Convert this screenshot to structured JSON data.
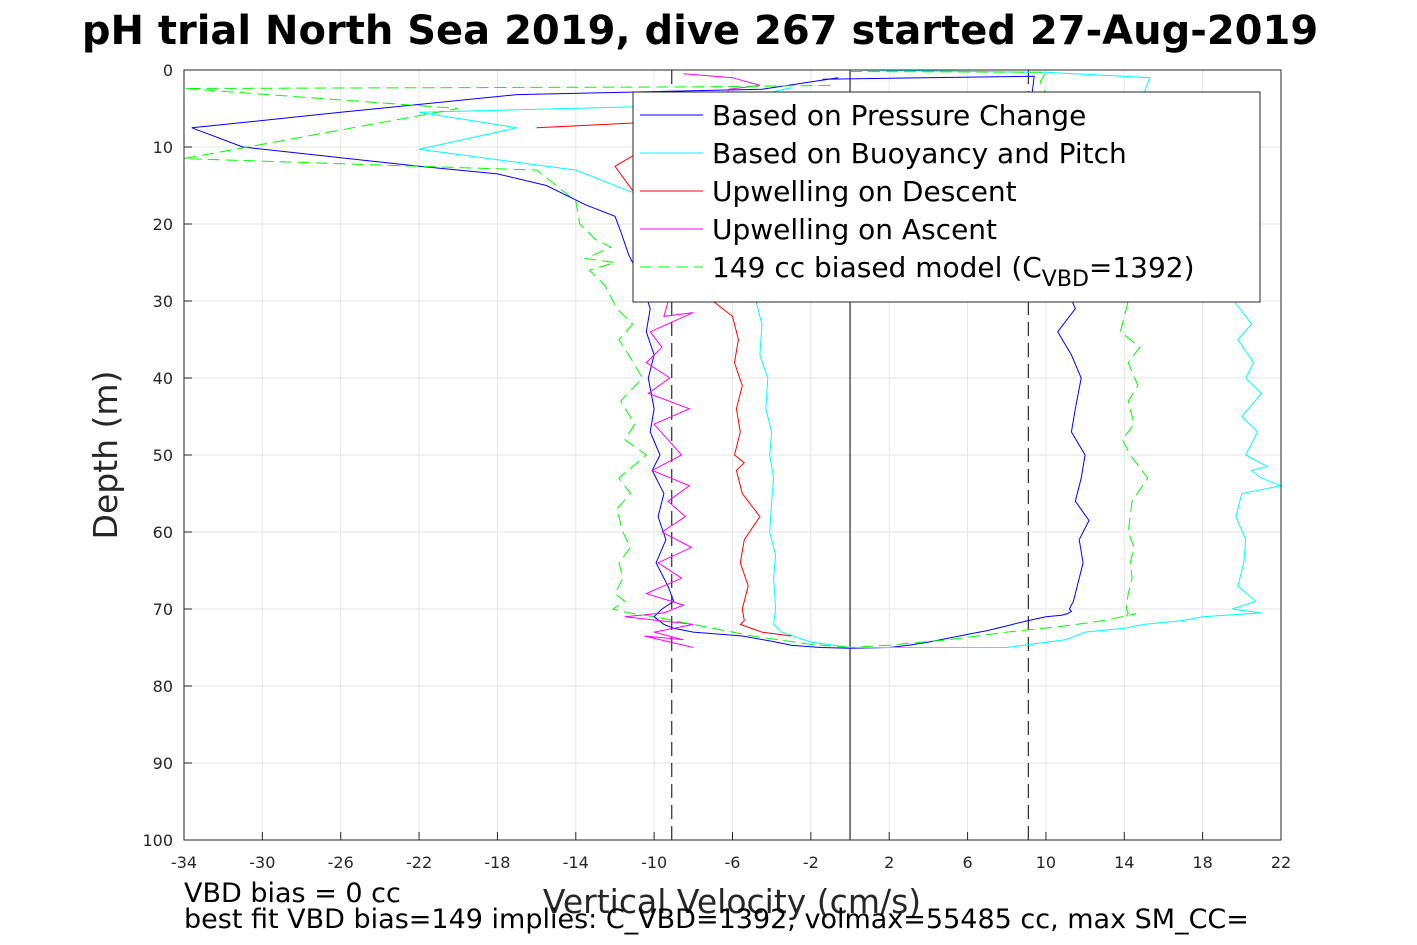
{
  "footer": {
    "line1": "VBD bias = 0 cc",
    "line2": "best fit VBD bias=149 implies: C_VBD=1392, volmax=55485 cc, max SM_CC="
  },
  "chart_data": {
    "type": "line",
    "title": "pH trial North Sea 2019, dive 267 started 27-Aug-2019",
    "xlabel": "Vertical Velocity (cm/s)",
    "ylabel": "Depth (m)",
    "xlim": [
      -34,
      22
    ],
    "ylim": [
      0,
      100
    ],
    "y_reversed": true,
    "grid": true,
    "xticks": [
      -34,
      -30,
      -26,
      -22,
      -18,
      -14,
      -10,
      -6,
      -2,
      2,
      6,
      10,
      14,
      18,
      22
    ],
    "yticks": [
      0,
      10,
      20,
      30,
      40,
      50,
      60,
      70,
      80,
      90,
      100
    ],
    "legend_position": "top-right",
    "legend": [
      {
        "label": "Based on Pressure Change",
        "color": "#0000ff",
        "dash": "solid"
      },
      {
        "label": "Based on Buoyancy and Pitch",
        "color": "#00ffff",
        "dash": "solid"
      },
      {
        "label": "Upwelling on Descent",
        "color": "#ff0000",
        "dash": "solid"
      },
      {
        "label": "Upwelling on Ascent",
        "color": "#ff00ff",
        "dash": "solid"
      },
      {
        "label": "149 cc biased model (C",
        "sub": "VBD",
        "suffix": "=1392)",
        "color": "#00ff00",
        "dash": "dashed"
      }
    ],
    "reference_lines": [
      {
        "x": 0,
        "style": "solid"
      },
      {
        "x": -9.1,
        "style": "dashed"
      },
      {
        "x": 9.1,
        "style": "dashed"
      }
    ],
    "series": [
      {
        "name": "Based on Pressure Change",
        "color": "#0000ff",
        "dash": "solid",
        "x": [
          -0.6,
          -4.5,
          -17,
          -26,
          -33.6,
          -31,
          -22,
          -18,
          -15.5,
          -13.5,
          -12,
          -11.7,
          -11.3,
          -10.7,
          -10.2,
          -10.4,
          -10,
          -10.3,
          -10,
          -10.2,
          -9.7,
          -10.1,
          -9.5,
          -9.8,
          -9.4,
          -9.9,
          -9.3,
          -9,
          -9.6,
          -10,
          -9.5,
          -9,
          -8,
          -5.5,
          -4,
          -3,
          -1.5,
          0
        ],
        "y": [
          1,
          2.5,
          3.2,
          5.5,
          7.5,
          10,
          12.5,
          13.5,
          15,
          17.5,
          19,
          21,
          24,
          27,
          31,
          34,
          37,
          40,
          44,
          47,
          50,
          52,
          55,
          58,
          61,
          64,
          67,
          69,
          70,
          71,
          72,
          72.5,
          73,
          73.5,
          74.2,
          74.7,
          75,
          75.1
        ]
      },
      {
        "name": "Based on Pressure Change",
        "color": "#0000ff",
        "dash": "solid",
        "x": [
          -1.4,
          9.4,
          9.2,
          9.4,
          9.5,
          9.7,
          10.5,
          11,
          11.5,
          10.6,
          11.3,
          11.8,
          11.5,
          11.3,
          12,
          11.8,
          11.5,
          12.2,
          11.7,
          11.9,
          11.6,
          11.4,
          11.2,
          11.3,
          11.1,
          10.8,
          10,
          9.3,
          8.6,
          8,
          7,
          6,
          5,
          4,
          3,
          2,
          0
        ],
        "y": [
          1.2,
          0.8,
          5,
          13,
          16,
          19,
          23,
          28,
          31,
          34,
          37,
          40,
          44,
          47,
          50,
          53,
          56,
          58.5,
          61,
          64,
          67,
          69,
          70,
          70.3,
          70.6,
          70.8,
          71,
          71.4,
          71.8,
          72.2,
          72.8,
          73.3,
          73.8,
          74.3,
          74.7,
          75,
          75.1
        ]
      },
      {
        "name": "Based on Buoyancy and Pitch",
        "color": "#00ffff",
        "dash": "solid",
        "x": [
          -3,
          -7,
          -22,
          -17,
          -22,
          -14,
          -8,
          -6,
          -5,
          -4.8,
          -4.5,
          -4.6,
          -4.2,
          -4.3,
          -4,
          -4.1,
          -3.9,
          -4,
          -4.1,
          -3.8,
          -3.9,
          -3.8,
          -3.9,
          -3.5,
          -2,
          0
        ],
        "y": [
          2.3,
          4.5,
          5.5,
          7.5,
          10.3,
          13,
          19,
          23,
          27,
          30,
          33,
          37,
          40,
          44,
          47,
          50,
          53,
          56,
          60,
          63,
          66,
          70,
          72,
          73,
          74.3,
          75
        ]
      },
      {
        "name": "Based on Buoyancy and Pitch",
        "color": "#00ffff",
        "dash": "solid",
        "x": [
          0,
          10,
          15.3,
          15,
          14.8,
          19.6,
          20.5,
          19.8,
          20.6,
          20.2,
          21,
          20,
          20.8,
          20.2,
          21.3,
          20.5,
          21,
          22,
          20,
          19.7,
          20.2,
          20.1,
          19.8,
          20.7,
          19.5,
          21,
          18,
          17,
          15,
          14,
          12,
          11,
          8,
          5,
          0
        ],
        "y": [
          0,
          0.3,
          1,
          3,
          5,
          30,
          33,
          35,
          38,
          40,
          42,
          45,
          47,
          50,
          51.5,
          52,
          53,
          54,
          55,
          58,
          61,
          64,
          67,
          69,
          70,
          70.5,
          71,
          71.5,
          72,
          72.5,
          73,
          74,
          75,
          75,
          75
        ]
      },
      {
        "name": "Upwelling on Descent",
        "color": "#ff0000",
        "dash": "solid",
        "x": [
          -16,
          -8,
          -12,
          -7,
          -6,
          -5.7,
          -5.9,
          -5.5,
          -5.8,
          -5.6,
          -5.9,
          -5.4,
          -5.8,
          -5.5,
          -4.6,
          -5.4,
          -5.6,
          -5.2,
          -5.5,
          -5.4,
          -5.6,
          -4.5,
          -3
        ],
        "y": [
          7.5,
          6.5,
          12.5,
          30,
          32,
          35,
          38,
          41,
          44,
          47,
          50,
          51,
          52,
          55,
          58,
          61,
          64,
          67,
          70,
          71.5,
          72,
          73,
          73.5
        ]
      },
      {
        "name": "Upwelling on Ascent",
        "color": "#ff00ff",
        "dash": "solid",
        "x": [
          -8.5,
          -6,
          -4.6,
          -6.2,
          -9.5,
          -8,
          -10.2,
          -9.6,
          -10.4,
          -9.2,
          -10.3,
          -8.2,
          -10,
          -9.3,
          -8.6,
          -10.1,
          -8.2,
          -9.3,
          -8.4,
          -9.6,
          -8.1,
          -9.8,
          -8.6,
          -10.4,
          -8.5,
          -9.5,
          -11.5,
          -8,
          -10,
          -8.5,
          -10.5,
          -8
        ],
        "y": [
          0.5,
          1,
          2,
          2.5,
          32,
          31.5,
          34,
          36,
          38,
          40,
          42,
          44,
          46,
          48,
          50,
          52,
          54,
          56,
          58,
          60,
          62,
          64,
          66,
          68,
          69.5,
          70.5,
          71,
          72,
          73,
          74,
          73.5,
          75
        ]
      },
      {
        "name": "149 cc biased model",
        "color": "#00ff00",
        "dash": "dashed",
        "x": [
          -1,
          -8,
          -34,
          -20,
          -34,
          -16,
          -14,
          -13.8,
          -13,
          -12.2,
          -13.5,
          -12,
          -13.3,
          -12.5,
          -11.9,
          -11.1,
          -11.8,
          -11.3,
          -10.6,
          -11.7,
          -11,
          -11.5,
          -10.4,
          -11.8,
          -11.2,
          -11.9,
          -11.6,
          -11.2,
          -11.8,
          -11.6,
          -12,
          -11.5,
          -12.1,
          -11.3,
          -10,
          -7,
          -5,
          -2,
          0
        ],
        "y": [
          2,
          2.2,
          2.4,
          5,
          11.5,
          13,
          17,
          20,
          22,
          23,
          24.5,
          25,
          26,
          28,
          31,
          33,
          35,
          37,
          40,
          43,
          46,
          48,
          50,
          53,
          55,
          57,
          60,
          62,
          64,
          66,
          68,
          69,
          70,
          70.5,
          71,
          72.5,
          73.5,
          74.6,
          75
        ]
      },
      {
        "name": "149 cc biased model",
        "color": "#00ff00",
        "dash": "dashed",
        "x": [
          0,
          10,
          9.7,
          14.5,
          13.8,
          14.8,
          14.2,
          14.7,
          14.2,
          14.5,
          13.9,
          14.3,
          15.2,
          14.4,
          14.2,
          14.5,
          14.3,
          14.4,
          14.2,
          14.1,
          14.2,
          14.1,
          14.6,
          13,
          11,
          8,
          5,
          2,
          0
        ],
        "y": [
          0.2,
          0.3,
          1.5,
          27,
          34,
          36,
          38,
          41,
          43,
          46,
          48,
          50,
          53,
          56,
          60,
          62,
          64,
          66,
          68,
          70,
          70.5,
          71,
          70.6,
          71.5,
          72.2,
          73,
          74,
          74.7,
          75
        ]
      }
    ]
  }
}
